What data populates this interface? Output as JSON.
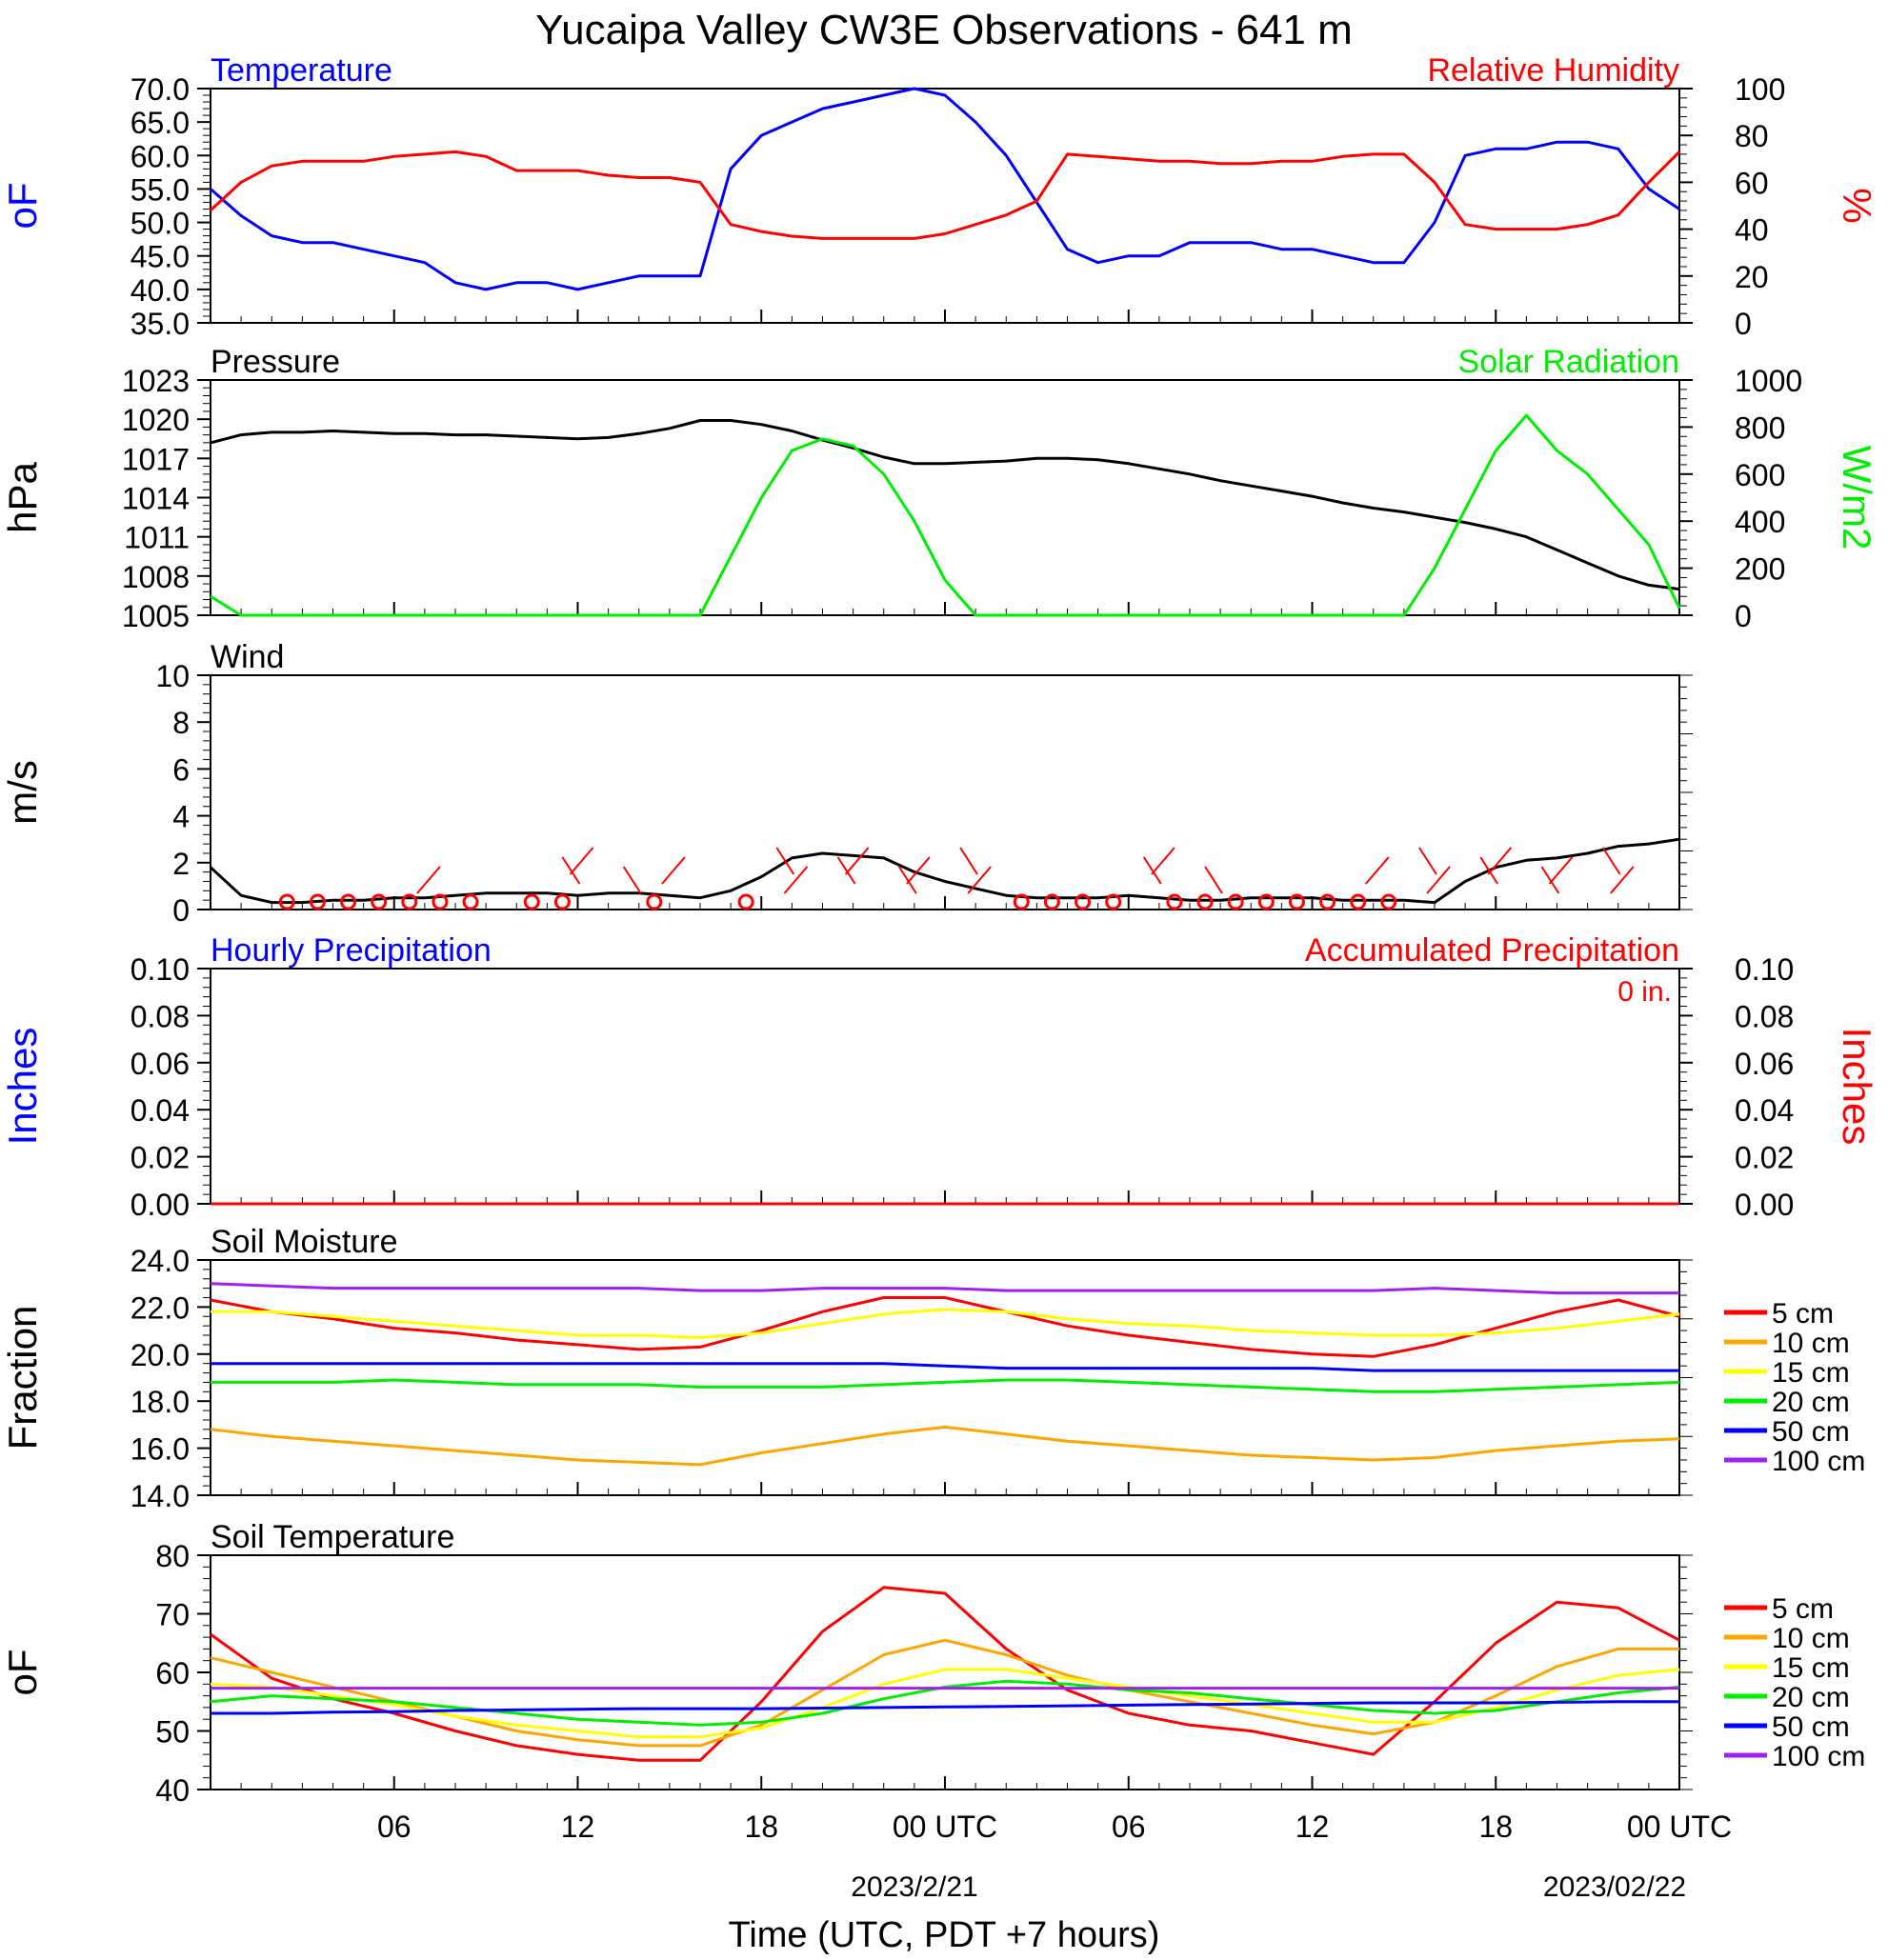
{
  "title": "Yucaipa Valley CW3E Observations - 641 m",
  "x_axis": {
    "ticks": [
      "06",
      "12",
      "18",
      "00 UTC",
      "06",
      "12",
      "18",
      "00 UTC"
    ],
    "date_labels": [
      "2023/2/21",
      "2023/02/22"
    ],
    "label": "Time (UTC, PDT +7 hours)"
  },
  "colors": {
    "temperature": "#0000ff",
    "humidity": "#ff0000",
    "pressure": "#000000",
    "solar": "#00ee00",
    "wind": "#000000",
    "barbs": "#ff0000",
    "hourly_precip": "#0000ff",
    "accum_precip": "#ff0000",
    "soil_5cm": "#ff0000",
    "soil_10cm": "#ffa500",
    "soil_15cm": "#ffff00",
    "soil_20cm": "#00ee00",
    "soil_50cm": "#0000ff",
    "soil_100cm": "#a020f0"
  },
  "chart_data": [
    {
      "type": "line",
      "panel": "temperature_humidity",
      "left_title": "Temperature",
      "right_title": "Relative Humidity",
      "ylabel_left": "oF",
      "ylabel_right": "%",
      "ylim_left": [
        35,
        70
      ],
      "ylim_right": [
        0,
        100
      ],
      "left_ticks": [
        "70.0",
        "65.0",
        "60.0",
        "55.0",
        "50.0",
        "45.0",
        "40.0",
        "35.0"
      ],
      "right_ticks": [
        "100",
        "80",
        "60",
        "40",
        "20",
        "0"
      ],
      "x_hours": [
        0,
        1,
        2,
        3,
        4,
        5,
        6,
        7,
        8,
        9,
        10,
        11,
        12,
        13,
        14,
        15,
        16,
        17,
        18,
        19,
        20,
        21,
        22,
        23,
        24,
        25,
        26,
        27,
        28,
        29,
        30,
        31,
        32,
        33,
        34,
        35,
        36,
        37,
        38,
        39,
        40,
        41,
        42,
        43,
        44,
        45,
        46,
        47,
        48
      ],
      "series": [
        {
          "name": "Temperature",
          "axis": "left",
          "values": [
            55,
            51,
            48,
            47,
            47,
            46,
            45,
            44,
            41,
            40,
            41,
            41,
            40,
            41,
            42,
            42,
            42,
            58,
            63,
            65,
            67,
            68,
            69,
            70,
            69,
            65,
            60,
            53,
            46,
            44,
            45,
            45,
            47,
            47,
            47,
            46,
            46,
            45,
            44,
            44,
            50,
            60,
            61,
            61,
            62,
            62,
            61,
            55,
            52
          ]
        },
        {
          "name": "Relative Humidity",
          "axis": "right",
          "values": [
            48,
            60,
            67,
            69,
            69,
            69,
            71,
            72,
            73,
            71,
            65,
            65,
            65,
            63,
            62,
            62,
            60,
            42,
            39,
            37,
            36,
            36,
            36,
            36,
            38,
            42,
            46,
            52,
            72,
            71,
            70,
            69,
            69,
            68,
            68,
            69,
            69,
            71,
            72,
            72,
            60,
            42,
            40,
            40,
            40,
            42,
            46,
            60,
            73
          ]
        }
      ]
    },
    {
      "type": "line",
      "panel": "pressure_solar",
      "left_title": "Pressure",
      "right_title": "Solar Radiation",
      "ylabel_left": "hPa",
      "ylabel_right": "W/m2",
      "ylim_left": [
        1005,
        1023
      ],
      "ylim_right": [
        0,
        1000
      ],
      "left_ticks": [
        "1023",
        "1020",
        "1017",
        "1014",
        "1011",
        "1008",
        "1005"
      ],
      "right_ticks": [
        "1000",
        "800",
        "600",
        "400",
        "200",
        "0"
      ],
      "x_hours": [
        0,
        1,
        2,
        3,
        4,
        5,
        6,
        7,
        8,
        9,
        10,
        11,
        12,
        13,
        14,
        15,
        16,
        17,
        18,
        19,
        20,
        21,
        22,
        23,
        24,
        25,
        26,
        27,
        28,
        29,
        30,
        31,
        32,
        33,
        34,
        35,
        36,
        37,
        38,
        39,
        40,
        41,
        42,
        43,
        44,
        45,
        46,
        47,
        48
      ],
      "series": [
        {
          "name": "Pressure",
          "axis": "left",
          "values": [
            1018.2,
            1018.8,
            1019,
            1019,
            1019.1,
            1019,
            1018.9,
            1018.9,
            1018.8,
            1018.8,
            1018.7,
            1018.6,
            1018.5,
            1018.6,
            1018.9,
            1019.3,
            1019.9,
            1019.9,
            1019.6,
            1019.1,
            1018.4,
            1017.8,
            1017.1,
            1016.6,
            1016.6,
            1016.7,
            1016.8,
            1017,
            1017,
            1016.9,
            1016.6,
            1016.2,
            1015.8,
            1015.3,
            1014.9,
            1014.5,
            1014.1,
            1013.6,
            1013.2,
            1012.9,
            1012.5,
            1012.1,
            1011.6,
            1011,
            1010,
            1009,
            1008,
            1007.3,
            1007
          ]
        },
        {
          "name": "Solar Radiation",
          "axis": "right",
          "values": [
            80,
            0,
            0,
            0,
            0,
            0,
            0,
            0,
            0,
            0,
            0,
            0,
            0,
            0,
            0,
            0,
            0,
            250,
            500,
            700,
            750,
            720,
            600,
            400,
            150,
            0,
            0,
            0,
            0,
            0,
            0,
            0,
            0,
            0,
            0,
            0,
            0,
            0,
            0,
            0,
            200,
            450,
            700,
            850,
            700,
            600,
            450,
            300,
            30
          ]
        }
      ]
    },
    {
      "type": "line",
      "panel": "wind",
      "left_title": "Wind",
      "ylabel_left": "m/s",
      "ylim_left": [
        0,
        10
      ],
      "left_ticks": [
        "10",
        "8",
        "6",
        "4",
        "2",
        "0"
      ],
      "x_hours": [
        0,
        1,
        2,
        3,
        4,
        5,
        6,
        7,
        8,
        9,
        10,
        11,
        12,
        13,
        14,
        15,
        16,
        17,
        18,
        19,
        20,
        21,
        22,
        23,
        24,
        25,
        26,
        27,
        28,
        29,
        30,
        31,
        32,
        33,
        34,
        35,
        36,
        37,
        38,
        39,
        40,
        41,
        42,
        43,
        44,
        45,
        46,
        47,
        48
      ],
      "series": [
        {
          "name": "Wind",
          "axis": "left",
          "values": [
            1.8,
            0.6,
            0.3,
            0.3,
            0.4,
            0.4,
            0.5,
            0.5,
            0.6,
            0.7,
            0.7,
            0.7,
            0.6,
            0.7,
            0.7,
            0.6,
            0.5,
            0.8,
            1.4,
            2.2,
            2.4,
            2.3,
            2.2,
            1.6,
            1.2,
            0.9,
            0.6,
            0.5,
            0.5,
            0.5,
            0.6,
            0.5,
            0.4,
            0.4,
            0.5,
            0.5,
            0.5,
            0.4,
            0.4,
            0.4,
            0.3,
            1.2,
            1.8,
            2.1,
            2.2,
            2.4,
            2.7,
            2.8,
            3.0
          ]
        }
      ],
      "calm_marker_hours": [
        2,
        3,
        4,
        5,
        6,
        7,
        8,
        10,
        11,
        14,
        17,
        26,
        27,
        28,
        29,
        31,
        32,
        33,
        34,
        35,
        36,
        37,
        38
      ],
      "barb_hours": [
        7,
        11,
        12,
        13,
        15,
        18,
        19,
        20,
        21,
        22,
        23,
        24,
        25,
        30,
        31,
        32,
        38,
        39,
        40,
        41,
        42,
        43,
        44,
        45,
        46
      ]
    },
    {
      "type": "line",
      "panel": "precipitation",
      "left_title": "Hourly Precipitation",
      "right_title": "Accumulated Precipitation",
      "total_label": "0 in.",
      "ylabel_left": "Inches",
      "ylabel_right": "Inches",
      "ylim_left": [
        0,
        0.1
      ],
      "ylim_right": [
        0,
        0.1
      ],
      "left_ticks": [
        "0.10",
        "0.08",
        "0.06",
        "0.04",
        "0.02",
        "0.00"
      ],
      "right_ticks": [
        "0.10",
        "0.08",
        "0.06",
        "0.04",
        "0.02",
        "0.00"
      ],
      "x_hours": [
        0,
        48
      ],
      "series": [
        {
          "name": "Hourly Precipitation",
          "axis": "left",
          "values": [
            0,
            0
          ]
        },
        {
          "name": "Accumulated Precipitation",
          "axis": "right",
          "values": [
            0,
            0
          ]
        }
      ]
    },
    {
      "type": "line",
      "panel": "soil_moisture",
      "left_title": "Soil Moisture",
      "ylabel_left": "Fraction",
      "ylim_left": [
        14,
        24
      ],
      "left_ticks": [
        "24.0",
        "22.0",
        "20.0",
        "18.0",
        "16.0",
        "14.0"
      ],
      "x_hours": [
        0,
        2,
        4,
        6,
        8,
        10,
        12,
        14,
        16,
        18,
        20,
        22,
        24,
        26,
        28,
        30,
        32,
        34,
        36,
        38,
        40,
        42,
        44,
        46,
        48
      ],
      "series": [
        {
          "name": "5 cm",
          "values": [
            22.3,
            21.8,
            21.5,
            21.1,
            20.9,
            20.6,
            20.4,
            20.2,
            20.3,
            21,
            21.8,
            22.4,
            22.4,
            21.8,
            21.2,
            20.8,
            20.5,
            20.2,
            20,
            19.9,
            20.4,
            21.1,
            21.8,
            22.3,
            21.6
          ]
        },
        {
          "name": "10 cm",
          "values": [
            16.8,
            16.5,
            16.3,
            16.1,
            15.9,
            15.7,
            15.5,
            15.4,
            15.3,
            15.8,
            16.2,
            16.6,
            16.9,
            16.6,
            16.3,
            16.1,
            15.9,
            15.7,
            15.6,
            15.5,
            15.6,
            15.9,
            16.1,
            16.3,
            16.4
          ]
        },
        {
          "name": "15 cm",
          "values": [
            21.8,
            21.8,
            21.6,
            21.4,
            21.2,
            21,
            20.8,
            20.8,
            20.7,
            20.9,
            21.3,
            21.7,
            21.9,
            21.8,
            21.5,
            21.3,
            21.2,
            21,
            20.9,
            20.8,
            20.8,
            20.9,
            21.1,
            21.4,
            21.7
          ]
        },
        {
          "name": "20 cm",
          "values": [
            18.8,
            18.8,
            18.8,
            18.9,
            18.8,
            18.7,
            18.7,
            18.7,
            18.6,
            18.6,
            18.6,
            18.7,
            18.8,
            18.9,
            18.9,
            18.8,
            18.7,
            18.6,
            18.5,
            18.4,
            18.4,
            18.5,
            18.6,
            18.7,
            18.8
          ]
        },
        {
          "name": "50 cm",
          "values": [
            19.6,
            19.6,
            19.6,
            19.6,
            19.6,
            19.6,
            19.6,
            19.6,
            19.6,
            19.6,
            19.6,
            19.6,
            19.5,
            19.4,
            19.4,
            19.4,
            19.4,
            19.4,
            19.4,
            19.3,
            19.3,
            19.3,
            19.3,
            19.3,
            19.3
          ]
        },
        {
          "name": "100 cm",
          "values": [
            23.0,
            22.9,
            22.8,
            22.8,
            22.8,
            22.8,
            22.8,
            22.8,
            22.7,
            22.7,
            22.8,
            22.8,
            22.8,
            22.7,
            22.7,
            22.7,
            22.7,
            22.7,
            22.7,
            22.7,
            22.8,
            22.7,
            22.6,
            22.6,
            22.6
          ]
        }
      ]
    },
    {
      "type": "line",
      "panel": "soil_temperature",
      "left_title": "Soil Temperature",
      "ylabel_left": "oF",
      "ylim_left": [
        40,
        80
      ],
      "left_ticks": [
        "80",
        "70",
        "60",
        "50",
        "40"
      ],
      "x_hours": [
        0,
        2,
        4,
        6,
        8,
        10,
        12,
        14,
        16,
        18,
        20,
        22,
        24,
        26,
        28,
        30,
        32,
        34,
        36,
        38,
        40,
        42,
        44,
        46,
        48
      ],
      "series": [
        {
          "name": "5 cm",
          "values": [
            66.5,
            59,
            55.5,
            53,
            50,
            47.5,
            46,
            45,
            45,
            55,
            67,
            74.5,
            73.5,
            64,
            57,
            53,
            51,
            50,
            48,
            46,
            55,
            65,
            72,
            71,
            65.5
          ]
        },
        {
          "name": "10 cm",
          "values": [
            62.5,
            60,
            57.5,
            55,
            52.5,
            50,
            48.5,
            47.5,
            47.5,
            51,
            57,
            63,
            65.5,
            63,
            59.5,
            57,
            55,
            53,
            51,
            49.5,
            51.5,
            56,
            61,
            64,
            64
          ]
        },
        {
          "name": "15 cm",
          "values": [
            58,
            57.5,
            56,
            54.5,
            52.5,
            51,
            50,
            49,
            49,
            50.5,
            54,
            58,
            60.5,
            60.5,
            59,
            57.5,
            56,
            54.5,
            53,
            51.5,
            51.5,
            54,
            57,
            59.5,
            60.5
          ]
        },
        {
          "name": "20 cm",
          "values": [
            55,
            56,
            55.5,
            55,
            54,
            53,
            52,
            51.5,
            51,
            51.5,
            53,
            55.5,
            57.5,
            58.5,
            58,
            57,
            56.5,
            55.5,
            54.5,
            53.5,
            53,
            53.5,
            55,
            56.5,
            57.5
          ]
        },
        {
          "name": "50 cm",
          "values": [
            53,
            53,
            53.2,
            53.3,
            53.5,
            53.6,
            53.7,
            53.8,
            53.8,
            53.8,
            53.9,
            54,
            54.1,
            54.2,
            54.3,
            54.4,
            54.5,
            54.6,
            54.7,
            54.8,
            54.8,
            54.8,
            54.9,
            55,
            55
          ]
        },
        {
          "name": "100 cm",
          "values": [
            57.3,
            57.3,
            57.3,
            57.3,
            57.3,
            57.3,
            57.3,
            57.3,
            57.3,
            57.3,
            57.3,
            57.3,
            57.3,
            57.3,
            57.3,
            57.3,
            57.3,
            57.3,
            57.3,
            57.3,
            57.3,
            57.3,
            57.3,
            57.3,
            57.3
          ]
        }
      ]
    }
  ]
}
